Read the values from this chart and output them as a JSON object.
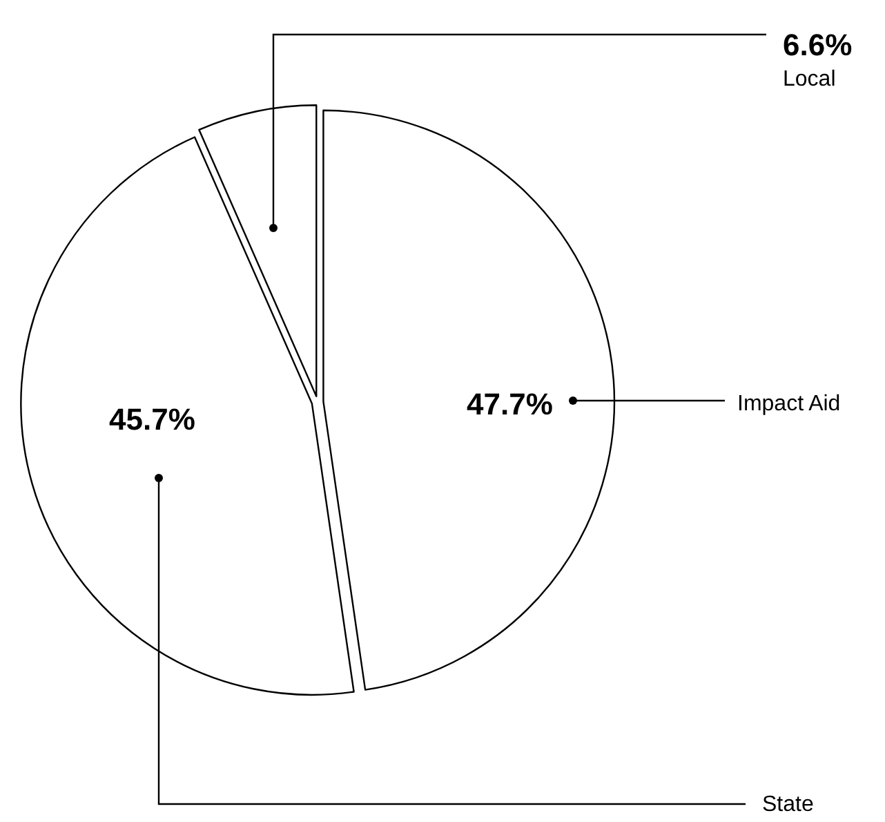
{
  "chart_data": {
    "type": "pie",
    "categories": [
      "Impact Aid",
      "State",
      "Local"
    ],
    "values": [
      47.7,
      45.7,
      6.6
    ],
    "colors": [
      "#ffffff",
      "#ffffff",
      "#ffffff"
    ],
    "value_labels": [
      "47.7%",
      "45.7%",
      "6.6%"
    ],
    "legend": false
  }
}
